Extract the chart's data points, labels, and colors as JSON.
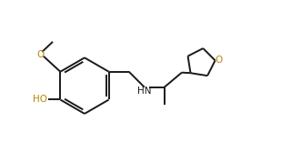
{
  "bg_color": "#ffffff",
  "bond_color": "#1a1a1a",
  "atom_color_O": "#b8860b",
  "atom_color_N": "#1a1a1a",
  "line_width": 1.4,
  "font_size_label": 7.5,
  "fig_width": 3.09,
  "fig_height": 1.79,
  "xlim": [
    0.0,
    10.0
  ],
  "ylim": [
    2.0,
    7.5
  ]
}
